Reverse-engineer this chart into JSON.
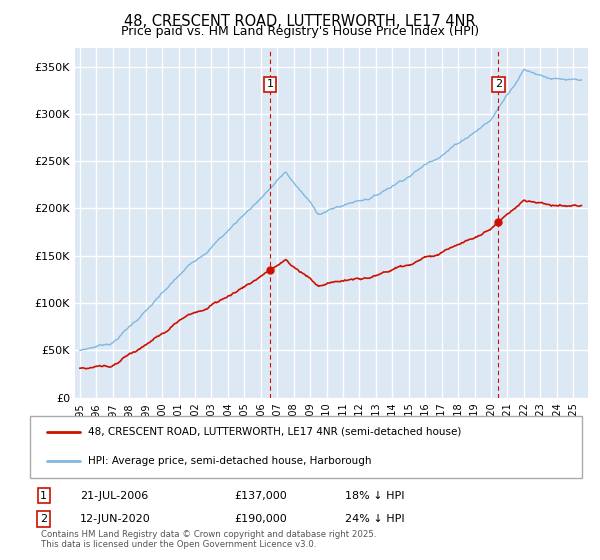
{
  "title": "48, CRESCENT ROAD, LUTTERWORTH, LE17 4NR",
  "subtitle": "Price paid vs. HM Land Registry's House Price Index (HPI)",
  "ylim": [
    0,
    370000
  ],
  "yticks": [
    0,
    50000,
    100000,
    150000,
    200000,
    250000,
    300000,
    350000
  ],
  "background_color": "#dde8f5",
  "grid_color": "#ffffff",
  "hpi_color": "#7fb8e0",
  "price_color": "#cc1100",
  "marker1_year": 2006.55,
  "marker1_price": 137000,
  "marker2_year": 2020.45,
  "marker2_price": 190000,
  "legend_line1": "48, CRESCENT ROAD, LUTTERWORTH, LE17 4NR (semi-detached house)",
  "legend_line2": "HPI: Average price, semi-detached house, Harborough",
  "marker1_date": "21-JUL-2006",
  "marker1_pct": "18% ↓ HPI",
  "marker2_date": "12-JUN-2020",
  "marker2_pct": "24% ↓ HPI",
  "footer": "Contains HM Land Registry data © Crown copyright and database right 2025.\nThis data is licensed under the Open Government Licence v3.0."
}
